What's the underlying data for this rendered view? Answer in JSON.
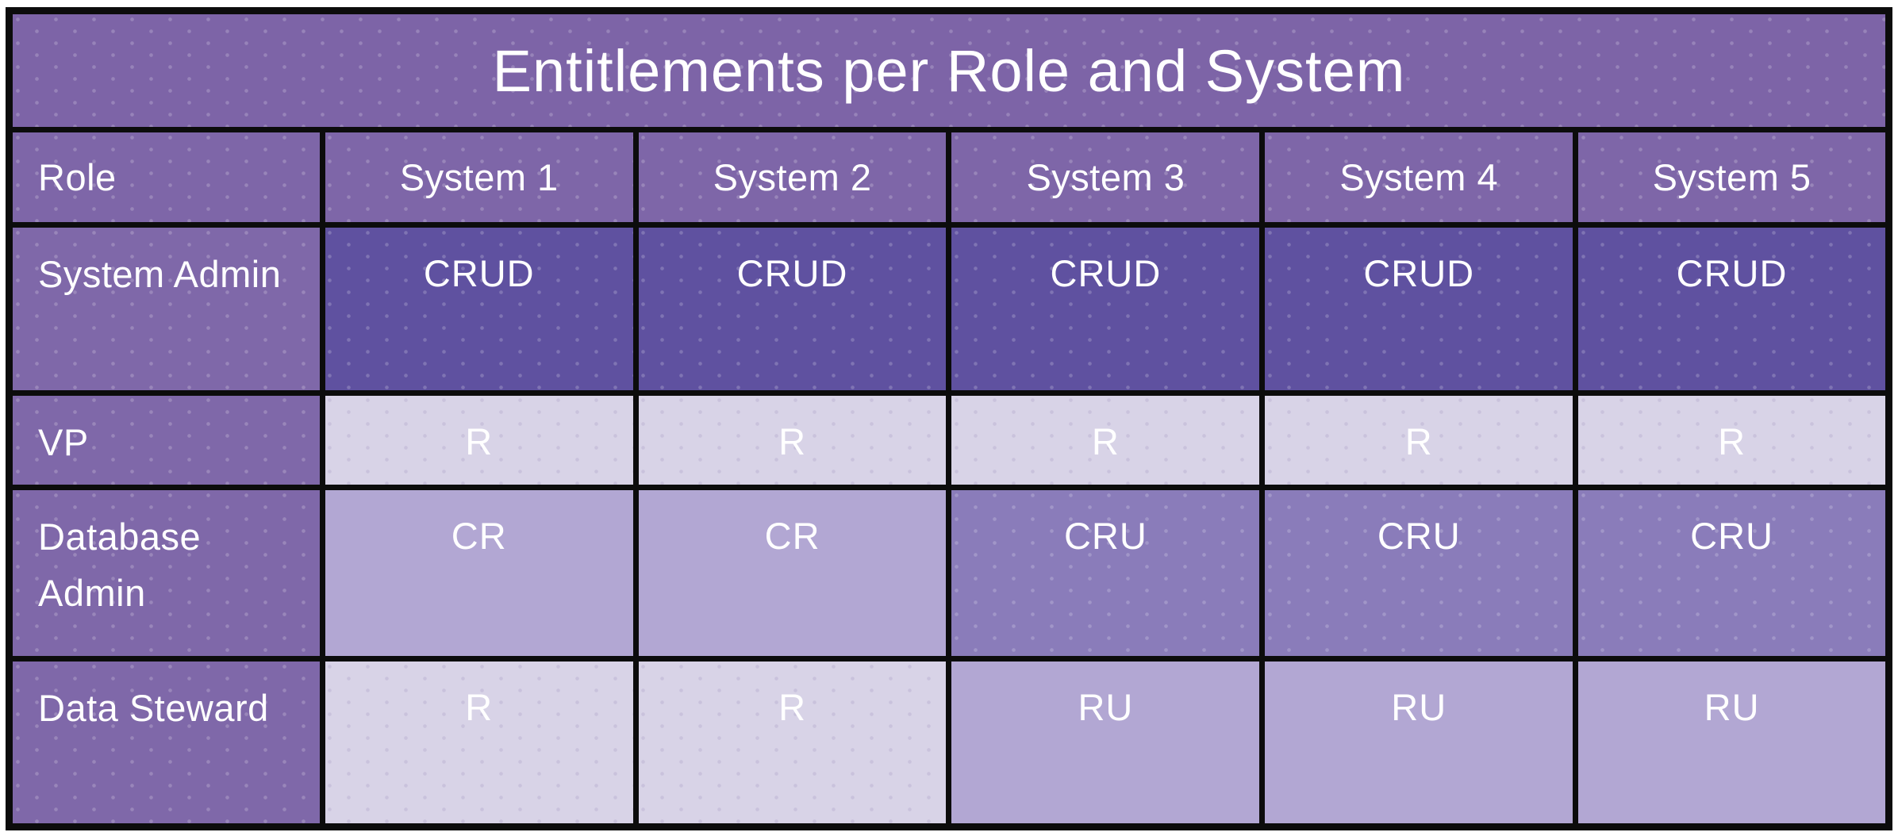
{
  "title": "Entitlements per Role and System",
  "chart_data": {
    "type": "table",
    "title": "Entitlements per Role and System",
    "columns": [
      "Role",
      "System 1",
      "System 2",
      "System 3",
      "System 4",
      "System 5"
    ],
    "rows": [
      [
        "System Admin",
        "CRUD",
        "CRUD",
        "CRUD",
        "CRUD",
        "CRUD"
      ],
      [
        "VP",
        "R",
        "R",
        "R",
        "R",
        "R"
      ],
      [
        "Database Admin",
        "CR",
        "CR",
        "CRU",
        "CRU",
        "CRU"
      ],
      [
        "Data Steward",
        "R",
        "R",
        "RU",
        "RU",
        "RU"
      ]
    ],
    "value_color_encoding": {
      "CRUD": "#5f51a0",
      "CRU": "#8a7cba",
      "CR": "#b2a7d3",
      "RU": "#b2a7d3",
      "R": "#d8d3e7"
    }
  },
  "colors": {
    "titleBg": "#7d64a7",
    "headerBg": "#7e66a8",
    "roleBg": "#7f68a9",
    "lv1": "#d8d3e7",
    "lv2": "#b2a7d3",
    "lv3": "#8a7cba",
    "lv4": "#5f51a0",
    "border": "#0c0c0c",
    "text": "#ffffff"
  }
}
